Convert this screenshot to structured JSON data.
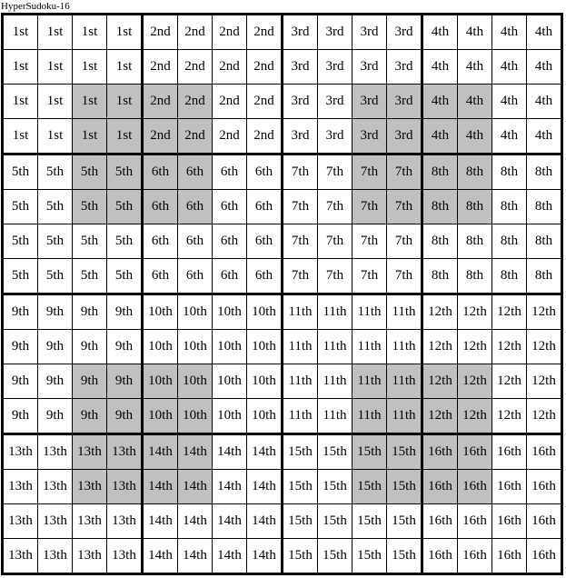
{
  "title": "HyperSudoku-16",
  "grid": {
    "rows": 16,
    "cols": 16,
    "box_size": 4,
    "box_labels": [
      "1st",
      "2nd",
      "3rd",
      "4th",
      "5th",
      "6th",
      "7th",
      "8th",
      "9th",
      "10th",
      "11th",
      "12th",
      "13th",
      "14th",
      "15th",
      "16th"
    ],
    "shaded_rows": [
      2,
      3,
      4,
      5,
      10,
      11,
      12,
      13
    ],
    "shaded_cols": [
      2,
      3,
      4,
      5,
      10,
      11,
      12,
      13
    ],
    "colors": {
      "shaded": "#c0c0c0",
      "cell_bg": "#ffffff",
      "border": "#000000"
    },
    "cells": [
      [
        "1st",
        "1st",
        "1st",
        "1st",
        "2nd",
        "2nd",
        "2nd",
        "2nd",
        "3rd",
        "3rd",
        "3rd",
        "3rd",
        "4th",
        "4th",
        "4th",
        "4th"
      ],
      [
        "1st",
        "1st",
        "1st",
        "1st",
        "2nd",
        "2nd",
        "2nd",
        "2nd",
        "3rd",
        "3rd",
        "3rd",
        "3rd",
        "4th",
        "4th",
        "4th",
        "4th"
      ],
      [
        "1st",
        "1st",
        "1st",
        "1st",
        "2nd",
        "2nd",
        "2nd",
        "2nd",
        "3rd",
        "3rd",
        "3rd",
        "3rd",
        "4th",
        "4th",
        "4th",
        "4th"
      ],
      [
        "1st",
        "1st",
        "1st",
        "1st",
        "2nd",
        "2nd",
        "2nd",
        "2nd",
        "3rd",
        "3rd",
        "3rd",
        "3rd",
        "4th",
        "4th",
        "4th",
        "4th"
      ],
      [
        "5th",
        "5th",
        "5th",
        "5th",
        "6th",
        "6th",
        "6th",
        "6th",
        "7th",
        "7th",
        "7th",
        "7th",
        "8th",
        "8th",
        "8th",
        "8th"
      ],
      [
        "5th",
        "5th",
        "5th",
        "5th",
        "6th",
        "6th",
        "6th",
        "6th",
        "7th",
        "7th",
        "7th",
        "7th",
        "8th",
        "8th",
        "8th",
        "8th"
      ],
      [
        "5th",
        "5th",
        "5th",
        "5th",
        "6th",
        "6th",
        "6th",
        "6th",
        "7th",
        "7th",
        "7th",
        "7th",
        "8th",
        "8th",
        "8th",
        "8th"
      ],
      [
        "5th",
        "5th",
        "5th",
        "5th",
        "6th",
        "6th",
        "6th",
        "6th",
        "7th",
        "7th",
        "7th",
        "7th",
        "8th",
        "8th",
        "8th",
        "8th"
      ],
      [
        "9th",
        "9th",
        "9th",
        "9th",
        "10th",
        "10th",
        "10th",
        "10th",
        "11th",
        "11th",
        "11th",
        "11th",
        "12th",
        "12th",
        "12th",
        "12th"
      ],
      [
        "9th",
        "9th",
        "9th",
        "9th",
        "10th",
        "10th",
        "10th",
        "10th",
        "11th",
        "11th",
        "11th",
        "11th",
        "12th",
        "12th",
        "12th",
        "12th"
      ],
      [
        "9th",
        "9th",
        "9th",
        "9th",
        "10th",
        "10th",
        "10th",
        "10th",
        "11th",
        "11th",
        "11th",
        "11th",
        "12th",
        "12th",
        "12th",
        "12th"
      ],
      [
        "9th",
        "9th",
        "9th",
        "9th",
        "10th",
        "10th",
        "10th",
        "10th",
        "11th",
        "11th",
        "11th",
        "11th",
        "12th",
        "12th",
        "12th",
        "12th"
      ],
      [
        "13th",
        "13th",
        "13th",
        "13th",
        "14th",
        "14th",
        "14th",
        "14th",
        "15th",
        "15th",
        "15th",
        "15th",
        "16th",
        "16th",
        "16th",
        "16th"
      ],
      [
        "13th",
        "13th",
        "13th",
        "13th",
        "14th",
        "14th",
        "14th",
        "14th",
        "15th",
        "15th",
        "15th",
        "15th",
        "16th",
        "16th",
        "16th",
        "16th"
      ],
      [
        "13th",
        "13th",
        "13th",
        "13th",
        "14th",
        "14th",
        "14th",
        "14th",
        "15th",
        "15th",
        "15th",
        "15th",
        "16th",
        "16th",
        "16th",
        "16th"
      ],
      [
        "13th",
        "13th",
        "13th",
        "13th",
        "14th",
        "14th",
        "14th",
        "14th",
        "15th",
        "15th",
        "15th",
        "15th",
        "16th",
        "16th",
        "16th",
        "16th"
      ]
    ]
  }
}
